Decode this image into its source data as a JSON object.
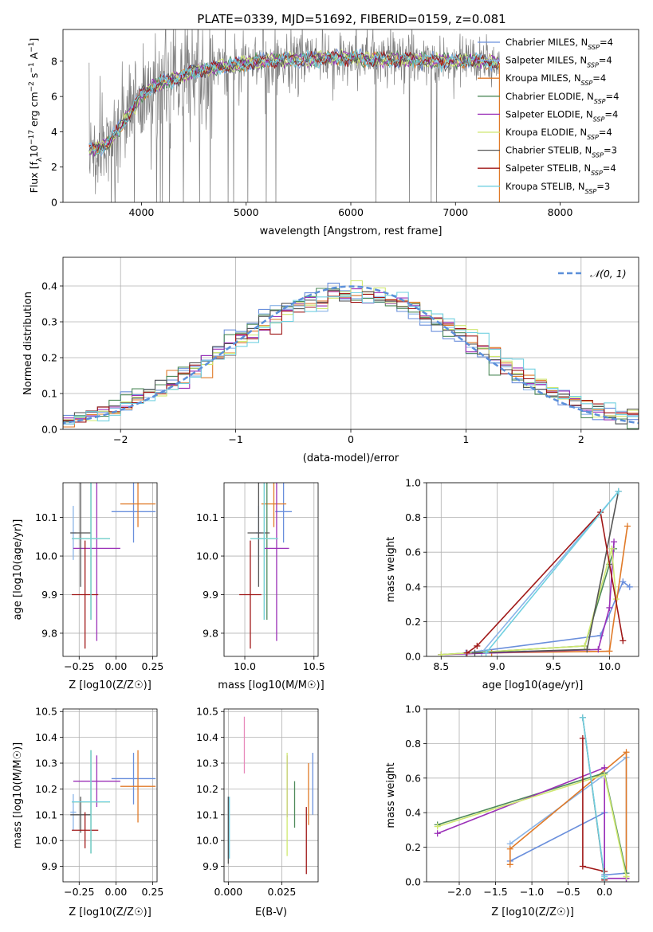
{
  "title": "PLATE=0339, MJD=51692, FIBERID=0159, z=0.081",
  "colors": {
    "Chabrier MILES": "#6a8fdc",
    "Salpeter MILES": "#8ab4e8",
    "Kroupa MILES": "#e07a28",
    "Chabrier ELODIE": "#4e8a5a",
    "Salpeter ELODIE": "#9b30b8",
    "Kroupa ELODIE": "#cfe870",
    "Chabrier STELIB": "#555555",
    "Salpeter STELIB": "#a01818",
    "Kroupa STELIB": "#70d0e0",
    "data": "#808080",
    "normal": "#5b8fd9"
  },
  "chart_data": [
    {
      "id": "spectrum",
      "type": "line",
      "xlabel": "wavelength [Angstrom, rest frame]",
      "ylabel": "Flux [f_λ 10^-17 erg cm^-2 s^-1 A^-1]",
      "xlim": [
        3250,
        8750
      ],
      "ylim": [
        0,
        9.8
      ],
      "xticks": [
        4000,
        5000,
        6000,
        7000,
        8000
      ],
      "yticks": [
        0,
        2,
        4,
        6,
        8
      ],
      "legend_position": "upper right",
      "data_trend": {
        "x": [
          3500,
          3600,
          3700,
          3800,
          3900,
          4000,
          4100,
          4200,
          4300,
          4400,
          4500,
          4600,
          4800,
          5000,
          5200,
          5400,
          5600,
          5800,
          6000,
          6200,
          6400,
          6600,
          6800,
          7000,
          7200,
          7400
        ],
        "y": [
          3.0,
          3.1,
          3.4,
          4.3,
          5.2,
          6.1,
          6.5,
          6.8,
          7.0,
          7.2,
          7.4,
          7.5,
          7.7,
          7.9,
          8.0,
          8.1,
          8.1,
          8.2,
          8.2,
          8.1,
          8.1,
          8.1,
          8.0,
          8.0,
          8.0,
          7.9
        ]
      },
      "legend": [
        {
          "model": "Chabrier MILES",
          "nssp": "4"
        },
        {
          "model": "Salpeter MILES",
          "nssp": "4"
        },
        {
          "model": "Kroupa MILES",
          "nssp": "4"
        },
        {
          "model": "Chabrier ELODIE",
          "nssp": "4"
        },
        {
          "model": "Salpeter ELODIE",
          "nssp": "4"
        },
        {
          "model": "Kroupa ELODIE",
          "nssp": "4"
        },
        {
          "model": "Chabrier STELIB",
          "nssp": "3"
        },
        {
          "model": "Salpeter STELIB",
          "nssp": "4"
        },
        {
          "model": "Kroupa STELIB",
          "nssp": "3"
        }
      ]
    },
    {
      "id": "residuals",
      "type": "area",
      "xlabel": "(data-model)/error",
      "ylabel": "Normed distribution",
      "xlim": [
        -2.5,
        2.5
      ],
      "ylim": [
        0,
        0.48
      ],
      "xticks": [
        -2,
        -1,
        0,
        1,
        2
      ],
      "yticks": [
        0.0,
        0.1,
        0.2,
        0.3,
        0.4
      ],
      "grid": true,
      "legend": "𝒩(0, 1)",
      "legend_position": "upper right"
    },
    {
      "id": "age_vs_Z",
      "type": "scatter",
      "xlabel": "Z [log10(Z/Z☉)]",
      "ylabel": "age [log10(age/yr)]",
      "xlim": [
        -0.36,
        0.28
      ],
      "ylim": [
        9.74,
        10.19
      ],
      "xticks": [
        -0.25,
        0.0,
        0.25
      ],
      "yticks": [
        9.8,
        9.9,
        10.0,
        10.1
      ],
      "grid": true,
      "points": [
        {
          "model": "Chabrier MILES",
          "x": 0.12,
          "y": 10.115,
          "xerr": 0.15,
          "yerr": 0.08
        },
        {
          "model": "Salpeter MILES",
          "x": -0.29,
          "y": 10.06,
          "xerr": 0.02,
          "yerr": 0.07
        },
        {
          "model": "Kroupa MILES",
          "x": 0.15,
          "y": 10.135,
          "xerr": 0.12,
          "yerr": 0.06
        },
        {
          "model": "Chabrier ELODIE",
          "x": -0.17,
          "y": 10.045,
          "xerr": 0.13,
          "yerr": 0.21
        },
        {
          "model": "Salpeter ELODIE",
          "x": -0.13,
          "y": 10.02,
          "xerr": 0.16,
          "yerr": 0.24
        },
        {
          "model": "Kroupa ELODIE",
          "x": -0.17,
          "y": 10.045,
          "xerr": 0.13,
          "yerr": 0.21
        },
        {
          "model": "Chabrier STELIB",
          "x": -0.24,
          "y": 10.06,
          "xerr": 0.07,
          "yerr": 0.14
        },
        {
          "model": "Salpeter STELIB",
          "x": -0.21,
          "y": 9.9,
          "xerr": 0.09,
          "yerr": 0.14
        },
        {
          "model": "Kroupa STELIB",
          "x": -0.17,
          "y": 10.045,
          "xerr": 0.13,
          "yerr": 0.21
        }
      ]
    },
    {
      "id": "age_vs_mass",
      "type": "scatter",
      "xlabel": "mass [log10(M/M☉)]",
      "ylabel": "",
      "xlim": [
        9.85,
        10.53
      ],
      "ylim": [
        9.74,
        10.19
      ],
      "xticks": [
        10.0,
        10.5
      ],
      "yticks": [
        9.8,
        9.9,
        10.0,
        10.1
      ],
      "grid": true,
      "points": [
        {
          "model": "Chabrier MILES",
          "x": 10.28,
          "y": 10.115,
          "xerr": 0.06,
          "yerr": 0.08
        },
        {
          "model": "Salpeter MILES",
          "x": 10.1,
          "y": 10.06,
          "xerr": 0.02,
          "yerr": 0.07
        },
        {
          "model": "Kroupa MILES",
          "x": 10.21,
          "y": 10.135,
          "xerr": 0.09,
          "yerr": 0.06
        },
        {
          "model": "Chabrier ELODIE",
          "x": 10.16,
          "y": 10.045,
          "xerr": 0.06,
          "yerr": 0.21
        },
        {
          "model": "Salpeter ELODIE",
          "x": 10.23,
          "y": 10.02,
          "xerr": 0.09,
          "yerr": 0.24
        },
        {
          "model": "Kroupa ELODIE",
          "x": 10.14,
          "y": 10.045,
          "xerr": 0.1,
          "yerr": 0.21
        },
        {
          "model": "Chabrier STELIB",
          "x": 10.1,
          "y": 10.06,
          "xerr": 0.08,
          "yerr": 0.14
        },
        {
          "model": "Salpeter STELIB",
          "x": 10.04,
          "y": 9.9,
          "xerr": 0.08,
          "yerr": 0.14
        },
        {
          "model": "Kroupa STELIB",
          "x": 10.14,
          "y": 10.045,
          "xerr": 0.1,
          "yerr": 0.21
        }
      ]
    },
    {
      "id": "weight_vs_age",
      "type": "line",
      "xlabel": "age [log10(age/yr)]",
      "ylabel": "mass weight",
      "xlim": [
        8.37,
        10.26
      ],
      "ylim": [
        0,
        1.0
      ],
      "xticks": [
        8.5,
        9.0,
        9.5,
        10.0
      ],
      "yticks": [
        0.0,
        0.2,
        0.4,
        0.6,
        0.8,
        1.0
      ],
      "grid": true,
      "series": [
        {
          "model": "Chabrier MILES",
          "x": [
            8.72,
            9.92,
            10.12,
            10.18
          ],
          "y": [
            0.02,
            0.12,
            0.43,
            0.4
          ]
        },
        {
          "model": "Salpeter MILES",
          "x": [
            8.86,
            10.08
          ],
          "y": [
            0.02,
            0.95
          ]
        },
        {
          "model": "Kroupa MILES",
          "x": [
            8.95,
            10.0,
            10.16
          ],
          "y": [
            0.02,
            0.03,
            0.75
          ]
        },
        {
          "model": "Chabrier ELODIE",
          "x": [
            8.5,
            9.78,
            10.0,
            10.04
          ],
          "y": [
            0.01,
            0.06,
            0.53,
            0.62
          ]
        },
        {
          "model": "Salpeter ELODIE",
          "x": [
            8.5,
            9.9,
            10.0,
            10.04
          ],
          "y": [
            0.01,
            0.04,
            0.28,
            0.66
          ]
        },
        {
          "model": "Kroupa ELODIE",
          "x": [
            8.5,
            9.78,
            10.02,
            10.06
          ],
          "y": [
            0.01,
            0.06,
            0.62,
            0.33
          ]
        },
        {
          "model": "Chabrier STELIB",
          "x": [
            8.8,
            9.8,
            10.08
          ],
          "y": [
            0.02,
            0.04,
            0.95
          ]
        },
        {
          "model": "Salpeter STELIB",
          "x": [
            8.73,
            8.82,
            9.92,
            10.12
          ],
          "y": [
            0.02,
            0.06,
            0.83,
            0.09
          ]
        },
        {
          "model": "Kroupa STELIB",
          "x": [
            8.9,
            10.08
          ],
          "y": [
            0.02,
            0.95
          ]
        }
      ]
    },
    {
      "id": "mass_vs_Z",
      "type": "scatter",
      "xlabel": "Z [log10(Z/Z☉)]",
      "ylabel": "mass [log10(M/M☉)]",
      "xlim": [
        -0.36,
        0.28
      ],
      "ylim": [
        9.84,
        10.51
      ],
      "xticks": [
        -0.25,
        0.0,
        0.25
      ],
      "yticks": [
        9.9,
        10.0,
        10.1,
        10.2,
        10.3,
        10.4,
        10.5
      ],
      "grid": true,
      "points": [
        {
          "model": "Chabrier MILES",
          "x": 0.12,
          "y": 10.24,
          "xerr": 0.15,
          "yerr": 0.1
        },
        {
          "model": "Salpeter MILES",
          "x": -0.29,
          "y": 10.11,
          "xerr": 0.02,
          "yerr": 0.07
        },
        {
          "model": "Kroupa MILES",
          "x": 0.15,
          "y": 10.21,
          "xerr": 0.12,
          "yerr": 0.14
        },
        {
          "model": "Chabrier ELODIE",
          "x": -0.17,
          "y": 10.15,
          "xerr": 0.13,
          "yerr": 0.2
        },
        {
          "model": "Salpeter ELODIE",
          "x": -0.13,
          "y": 10.23,
          "xerr": 0.16,
          "yerr": 0.1
        },
        {
          "model": "Kroupa ELODIE",
          "x": -0.17,
          "y": 10.15,
          "xerr": 0.13,
          "yerr": 0.2
        },
        {
          "model": "Chabrier STELIB",
          "x": -0.24,
          "y": 10.1,
          "xerr": 0.07,
          "yerr": 0.07
        },
        {
          "model": "Salpeter STELIB",
          "x": -0.21,
          "y": 10.04,
          "xerr": 0.09,
          "yerr": 0.07
        },
        {
          "model": "Kroupa STELIB",
          "x": -0.17,
          "y": 10.15,
          "xerr": 0.13,
          "yerr": 0.2
        }
      ]
    },
    {
      "id": "mass_vs_ebv",
      "type": "scatter",
      "xlabel": "E(B-V)",
      "ylabel": "",
      "xlim": [
        -0.002,
        0.042
      ],
      "ylim": [
        9.84,
        10.51
      ],
      "xticks": [
        0.0,
        0.025
      ],
      "yticks": [
        9.9,
        10.0,
        10.1,
        10.2,
        10.3,
        10.4,
        10.5
      ],
      "grid": true,
      "points": [
        {
          "model": "Chabrier MILES",
          "x": 0.0395,
          "y": 10.22,
          "xerr": 0,
          "yerr": 0.12
        },
        {
          "model": "Salpeter MILES",
          "x": 0.0,
          "y": 10.05,
          "xerr": 0,
          "yerr": 0.12
        },
        {
          "model": "Kroupa MILES",
          "x": 0.0375,
          "y": 10.18,
          "xerr": 0,
          "yerr": 0.12
        },
        {
          "model": "Chabrier ELODIE",
          "x": 0.031,
          "y": 10.14,
          "xerr": 0,
          "yerr": 0.09
        },
        {
          "model": "Salpeter ELODIE",
          "x": 0.0275,
          "y": 10.21,
          "xerr": 0,
          "yerr": 0.12
        },
        {
          "model": "Kroupa ELODIE",
          "x": 0.0275,
          "y": 10.14,
          "xerr": 0,
          "yerr": 0.2
        },
        {
          "model": "Chabrier STELIB",
          "x": 0.0,
          "y": 10.04,
          "xerr": 0,
          "yerr": 0.13
        },
        {
          "model": "Salpeter STELIB",
          "x": 0.0365,
          "y": 10.0,
          "xerr": 0,
          "yerr": 0.13
        },
        {
          "model": "Kroupa STELIB",
          "x": 0.0005,
          "y": 10.05,
          "xerr": 0,
          "yerr": 0.12
        },
        {
          "model": "Salpeter MILES pink",
          "x": 0.0075,
          "y": 10.37,
          "xerr": 0,
          "yerr": 0.11
        }
      ]
    },
    {
      "id": "weight_vs_Z",
      "type": "line",
      "xlabel": "Z [log10(Z/Z☉)]",
      "ylabel": "mass weight",
      "xlim": [
        -2.45,
        0.47
      ],
      "ylim": [
        0,
        1.0
      ],
      "xticks": [
        -2.0,
        -1.5,
        -1.0,
        -0.5,
        0.0
      ],
      "yticks": [
        0.0,
        0.2,
        0.4,
        0.6,
        0.8,
        1.0
      ],
      "grid": true,
      "series": [
        {
          "model": "Chabrier MILES",
          "x": [
            -1.3,
            0.0,
            0.0,
            0.3
          ],
          "y": [
            0.12,
            0.4,
            0.04,
            0.05
          ]
        },
        {
          "model": "Salpeter MILES",
          "x": [
            -1.3,
            0.0,
            0.3,
            0.3
          ],
          "y": [
            0.22,
            0.62,
            0.72,
            0.02
          ]
        },
        {
          "model": "Kroupa MILES",
          "x": [
            -1.3,
            -1.3,
            0.3,
            0.3
          ],
          "y": [
            0.1,
            0.19,
            0.75,
            0.03
          ]
        },
        {
          "model": "Chabrier ELODIE",
          "x": [
            -2.3,
            0.0,
            0.3,
            0.3
          ],
          "y": [
            0.33,
            0.63,
            0.05,
            0.02
          ]
        },
        {
          "model": "Salpeter ELODIE",
          "x": [
            -2.3,
            0.0,
            0.0,
            0.3
          ],
          "y": [
            0.28,
            0.66,
            0.02,
            0.02
          ]
        },
        {
          "model": "Kroupa ELODIE",
          "x": [
            -2.3,
            0.0,
            0.3,
            0.3
          ],
          "y": [
            0.32,
            0.62,
            0.03,
            0.03
          ]
        },
        {
          "model": "Chabrier STELIB",
          "x": [
            -0.3,
            0.0,
            0.0
          ],
          "y": [
            0.95,
            0.02,
            0.02
          ]
        },
        {
          "model": "Salpeter STELIB",
          "x": [
            -0.3,
            -0.3,
            0.0,
            0.0
          ],
          "y": [
            0.83,
            0.09,
            0.06,
            0.01
          ]
        },
        {
          "model": "Kroupa STELIB",
          "x": [
            -0.3,
            0.0,
            0.0
          ],
          "y": [
            0.95,
            0.03,
            0.02
          ]
        }
      ]
    }
  ]
}
